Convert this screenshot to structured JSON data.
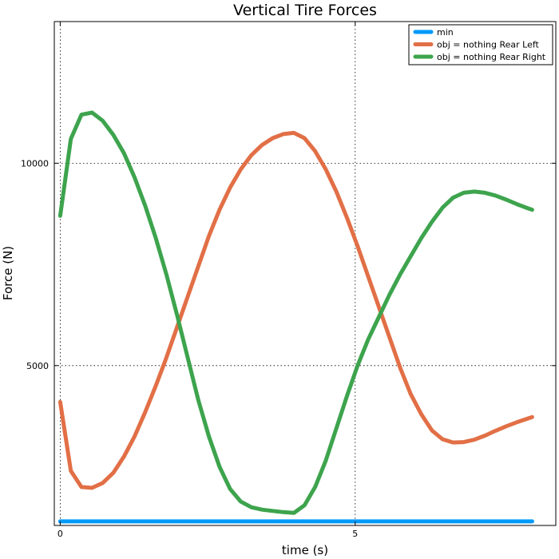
{
  "chart_data": {
    "type": "line",
    "title": "Vertical Tire Forces",
    "xlabel": "time (s)",
    "ylabel": "Force (N)",
    "xlim": [
      -0.1,
      8.4
    ],
    "ylim": [
      1050,
      13500
    ],
    "xticks": [
      {
        "value": 0,
        "label": "0"
      },
      {
        "value": 5,
        "label": "5"
      }
    ],
    "yticks": [
      {
        "value": 5000,
        "label": "5000"
      },
      {
        "value": 10000,
        "label": "10000"
      }
    ],
    "grid": true,
    "legend_position": "top-right",
    "series": [
      {
        "name": "min",
        "color": "#009af9",
        "x": [
          0,
          8
        ],
        "y": [
          1150,
          1150
        ]
      },
      {
        "name": "obj = nothing Rear Left",
        "color": "#e26f46",
        "x": [
          0,
          0.18,
          0.36,
          0.54,
          0.72,
          0.9,
          1.08,
          1.26,
          1.44,
          1.62,
          1.8,
          1.98,
          2.16,
          2.34,
          2.52,
          2.7,
          2.88,
          3.06,
          3.24,
          3.42,
          3.6,
          3.78,
          3.96,
          4.14,
          4.32,
          4.5,
          4.68,
          4.86,
          5.04,
          5.22,
          5.4,
          5.58,
          5.76,
          5.94,
          6.12,
          6.3,
          6.48,
          6.66,
          6.84,
          7.02,
          7.2,
          7.38,
          7.56,
          7.74,
          7.92,
          8.0
        ],
        "y": [
          4100,
          2400,
          2000,
          1980,
          2100,
          2350,
          2750,
          3250,
          3850,
          4500,
          5200,
          5950,
          6700,
          7450,
          8200,
          8850,
          9400,
          9850,
          10200,
          10450,
          10620,
          10720,
          10750,
          10620,
          10300,
          9850,
          9300,
          8650,
          7950,
          7200,
          6450,
          5700,
          4950,
          4300,
          3800,
          3400,
          3180,
          3100,
          3110,
          3170,
          3270,
          3390,
          3500,
          3600,
          3690,
          3730
        ]
      },
      {
        "name": "obj = nothing Rear Right",
        "color": "#3da44d",
        "x": [
          0,
          0.18,
          0.36,
          0.54,
          0.72,
          0.9,
          1.08,
          1.26,
          1.44,
          1.62,
          1.8,
          1.98,
          2.16,
          2.34,
          2.52,
          2.7,
          2.88,
          3.06,
          3.24,
          3.42,
          3.6,
          3.78,
          3.96,
          4.14,
          4.32,
          4.5,
          4.68,
          4.86,
          5.04,
          5.22,
          5.4,
          5.58,
          5.76,
          5.94,
          6.12,
          6.3,
          6.48,
          6.66,
          6.84,
          7.02,
          7.2,
          7.38,
          7.56,
          7.74,
          7.92,
          8.0
        ],
        "y": [
          8700,
          10600,
          11200,
          11250,
          11050,
          10700,
          10250,
          9650,
          8950,
          8150,
          7250,
          6250,
          5200,
          4150,
          3250,
          2500,
          1950,
          1640,
          1500,
          1440,
          1410,
          1380,
          1360,
          1550,
          2000,
          2650,
          3450,
          4250,
          5000,
          5650,
          6200,
          6750,
          7250,
          7700,
          8150,
          8550,
          8900,
          9150,
          9270,
          9300,
          9270,
          9200,
          9100,
          8990,
          8890,
          8850
        ]
      }
    ]
  }
}
